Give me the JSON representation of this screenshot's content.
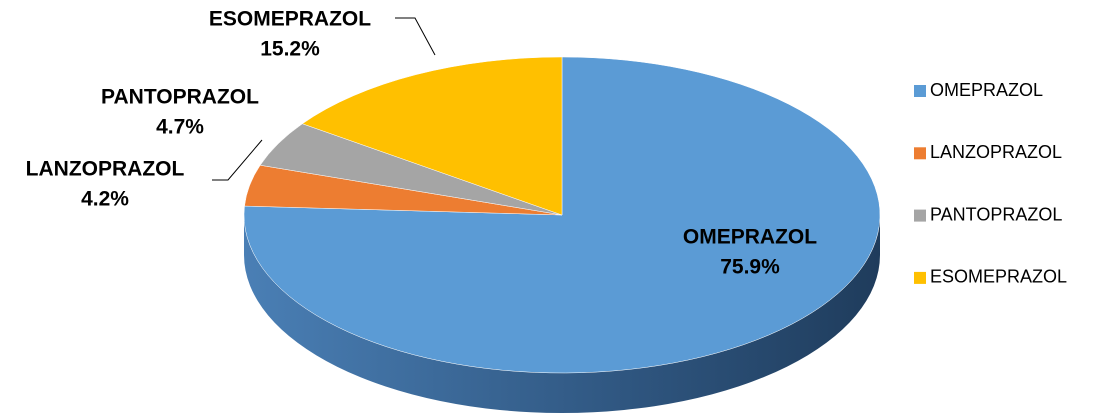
{
  "chart_data": {
    "type": "pie",
    "categories": [
      "OMEPRAZOL",
      "LANZOPRAZOL",
      "PANTOPRAZOL",
      "ESOMEPRAZOL"
    ],
    "values": [
      75.9,
      4.2,
      4.7,
      15.2
    ],
    "value_labels": [
      "75.9%",
      "4.2%",
      "4.7%",
      "15.2%"
    ],
    "colors": [
      "#5b9bd5",
      "#ed7d31",
      "#a5a5a5",
      "#ffc000"
    ],
    "legend": "right"
  }
}
